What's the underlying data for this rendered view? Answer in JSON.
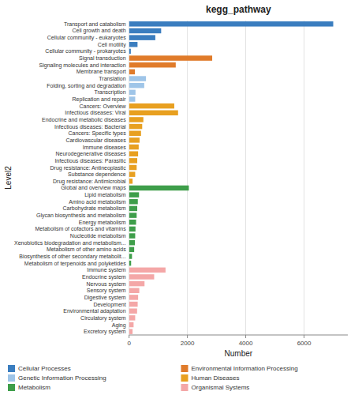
{
  "chart_data": {
    "type": "bar",
    "orientation": "horizontal",
    "stacked": true,
    "title": "kegg_pathway",
    "xlabel": "Number",
    "ylabel": "Level2",
    "categories": [
      "Transport and catabolism",
      "Cell growth and death",
      "Cellular community - eukaryotes",
      "Cell motility",
      "Cellular community - prokaryotes",
      "Signal transduction",
      "Signaling molecules and interaction",
      "Membrane transport",
      "Translation",
      "Folding, sorting and degradation",
      "Transcription",
      "Replication and repair",
      "Cancers: Overview",
      "Infectious diseases: Viral",
      "Endocrine and metabolic diseases",
      "Infectious diseases: Bacterial",
      "Cancers: Specific types",
      "Cardiovascular diseases",
      "Immune diseases",
      "Neurodegenerative diseases",
      "Infectious diseases: Parasitic",
      "Drug resistance: Antineoplastic",
      "Substance dependence",
      "Drug resistance: Antimicrobial",
      "Global and overview maps",
      "Lipid metabolism",
      "Amino acid metabolism",
      "Carbohydrate metabolism",
      "Glycan biosynthesis and metabolism",
      "Energy metabolism",
      "Metabolism of cofactors and vitamins",
      "Nucleotide metabolism",
      "Xenobiotics biodegradation and metabolism...",
      "Metabolism of other amino acids",
      "Biosynthesis of other secondary metabolit...",
      "Metabolism of terpenoids and polyketides",
      "Immune system",
      "Endocrine system",
      "Nervous system",
      "Sensory system",
      "Digestive system",
      "Development",
      "Environmental adaptation",
      "Circulatory system",
      "Aging",
      "Excretory system"
    ],
    "series": [
      {
        "name": "Cellular Processes",
        "color": "#3a7dbf",
        "values": [
          7000,
          1100,
          900,
          290,
          60,
          null,
          null,
          null,
          null,
          null,
          null,
          null,
          null,
          null,
          null,
          null,
          null,
          null,
          null,
          null,
          null,
          null,
          null,
          null,
          null,
          null,
          null,
          null,
          null,
          null,
          null,
          null,
          null,
          null,
          null,
          null,
          null,
          null,
          null,
          null,
          null,
          null,
          null,
          null,
          null,
          null
        ]
      },
      {
        "name": "Environmental Information Processing",
        "color": "#e07b2a",
        "values": [
          null,
          null,
          null,
          null,
          null,
          2850,
          1600,
          200,
          null,
          null,
          null,
          null,
          null,
          null,
          null,
          null,
          null,
          null,
          null,
          null,
          null,
          null,
          null,
          null,
          null,
          null,
          null,
          null,
          null,
          null,
          null,
          null,
          null,
          null,
          null,
          null,
          null,
          null,
          null,
          null,
          null,
          null,
          null,
          null,
          null,
          null
        ]
      },
      {
        "name": "Genetic Information Processing",
        "color": "#9fc5e8",
        "values": [
          null,
          null,
          null,
          null,
          null,
          null,
          null,
          null,
          580,
          520,
          220,
          210,
          null,
          null,
          null,
          null,
          null,
          null,
          null,
          null,
          null,
          null,
          null,
          null,
          null,
          null,
          null,
          null,
          null,
          null,
          null,
          null,
          null,
          null,
          null,
          null,
          null,
          null,
          null,
          null,
          null,
          null,
          null,
          null,
          null,
          null
        ]
      },
      {
        "name": "Human Diseases",
        "color": "#e8a020",
        "values": [
          null,
          null,
          null,
          null,
          null,
          null,
          null,
          null,
          null,
          null,
          null,
          null,
          1550,
          1680,
          490,
          450,
          410,
          360,
          330,
          310,
          280,
          260,
          210,
          120,
          null,
          null,
          null,
          null,
          null,
          null,
          null,
          null,
          null,
          null,
          null,
          null,
          null,
          null,
          null,
          null,
          null,
          null,
          null,
          null,
          null,
          null
        ]
      },
      {
        "name": "Metabolism",
        "color": "#3e9e4a",
        "values": [
          null,
          null,
          null,
          null,
          null,
          null,
          null,
          null,
          null,
          null,
          null,
          null,
          null,
          null,
          null,
          null,
          null,
          null,
          null,
          null,
          null,
          null,
          null,
          null,
          2050,
          340,
          300,
          280,
          260,
          240,
          220,
          210,
          200,
          175,
          100,
          70,
          null,
          null,
          null,
          null,
          null,
          null,
          null,
          null,
          null,
          null
        ]
      },
      {
        "name": "Organismal Systems",
        "color": "#f4a7a7",
        "values": [
          null,
          null,
          null,
          null,
          null,
          null,
          null,
          null,
          null,
          null,
          null,
          null,
          null,
          null,
          null,
          null,
          null,
          null,
          null,
          null,
          null,
          null,
          null,
          null,
          null,
          null,
          null,
          null,
          null,
          null,
          null,
          null,
          null,
          null,
          null,
          null,
          1250,
          860,
          530,
          350,
          310,
          295,
          275,
          210,
          155,
          120
        ]
      }
    ],
    "xlim": [
      0,
      7500
    ],
    "xticks": [
      0,
      2000,
      4000,
      6000
    ],
    "grid": true,
    "legend": "bottom"
  }
}
